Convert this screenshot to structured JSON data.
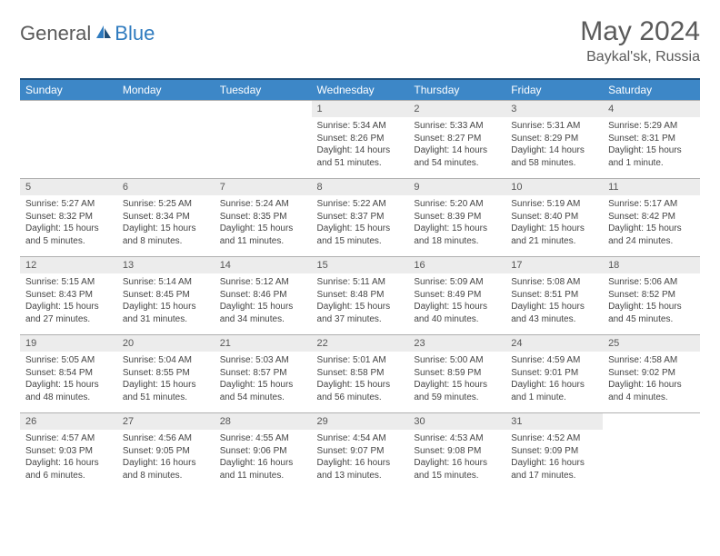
{
  "logo": {
    "part1": "General",
    "part2": "Blue"
  },
  "title": "May 2024",
  "location": "Baykal'sk, Russia",
  "colors": {
    "header_bg": "#3d87c7",
    "header_border_top": "#1f4e79",
    "daynum_bg": "#ececec",
    "text": "#444444",
    "title_color": "#5a5a5a",
    "logo_blue": "#2f7bbf"
  },
  "weekdays": [
    "Sunday",
    "Monday",
    "Tuesday",
    "Wednesday",
    "Thursday",
    "Friday",
    "Saturday"
  ],
  "weeks": [
    [
      null,
      null,
      null,
      {
        "n": "1",
        "sr": "5:34 AM",
        "ss": "8:26 PM",
        "dl": "14 hours and 51 minutes."
      },
      {
        "n": "2",
        "sr": "5:33 AM",
        "ss": "8:27 PM",
        "dl": "14 hours and 54 minutes."
      },
      {
        "n": "3",
        "sr": "5:31 AM",
        "ss": "8:29 PM",
        "dl": "14 hours and 58 minutes."
      },
      {
        "n": "4",
        "sr": "5:29 AM",
        "ss": "8:31 PM",
        "dl": "15 hours and 1 minute."
      }
    ],
    [
      {
        "n": "5",
        "sr": "5:27 AM",
        "ss": "8:32 PM",
        "dl": "15 hours and 5 minutes."
      },
      {
        "n": "6",
        "sr": "5:25 AM",
        "ss": "8:34 PM",
        "dl": "15 hours and 8 minutes."
      },
      {
        "n": "7",
        "sr": "5:24 AM",
        "ss": "8:35 PM",
        "dl": "15 hours and 11 minutes."
      },
      {
        "n": "8",
        "sr": "5:22 AM",
        "ss": "8:37 PM",
        "dl": "15 hours and 15 minutes."
      },
      {
        "n": "9",
        "sr": "5:20 AM",
        "ss": "8:39 PM",
        "dl": "15 hours and 18 minutes."
      },
      {
        "n": "10",
        "sr": "5:19 AM",
        "ss": "8:40 PM",
        "dl": "15 hours and 21 minutes."
      },
      {
        "n": "11",
        "sr": "5:17 AM",
        "ss": "8:42 PM",
        "dl": "15 hours and 24 minutes."
      }
    ],
    [
      {
        "n": "12",
        "sr": "5:15 AM",
        "ss": "8:43 PM",
        "dl": "15 hours and 27 minutes."
      },
      {
        "n": "13",
        "sr": "5:14 AM",
        "ss": "8:45 PM",
        "dl": "15 hours and 31 minutes."
      },
      {
        "n": "14",
        "sr": "5:12 AM",
        "ss": "8:46 PM",
        "dl": "15 hours and 34 minutes."
      },
      {
        "n": "15",
        "sr": "5:11 AM",
        "ss": "8:48 PM",
        "dl": "15 hours and 37 minutes."
      },
      {
        "n": "16",
        "sr": "5:09 AM",
        "ss": "8:49 PM",
        "dl": "15 hours and 40 minutes."
      },
      {
        "n": "17",
        "sr": "5:08 AM",
        "ss": "8:51 PM",
        "dl": "15 hours and 43 minutes."
      },
      {
        "n": "18",
        "sr": "5:06 AM",
        "ss": "8:52 PM",
        "dl": "15 hours and 45 minutes."
      }
    ],
    [
      {
        "n": "19",
        "sr": "5:05 AM",
        "ss": "8:54 PM",
        "dl": "15 hours and 48 minutes."
      },
      {
        "n": "20",
        "sr": "5:04 AM",
        "ss": "8:55 PM",
        "dl": "15 hours and 51 minutes."
      },
      {
        "n": "21",
        "sr": "5:03 AM",
        "ss": "8:57 PM",
        "dl": "15 hours and 54 minutes."
      },
      {
        "n": "22",
        "sr": "5:01 AM",
        "ss": "8:58 PM",
        "dl": "15 hours and 56 minutes."
      },
      {
        "n": "23",
        "sr": "5:00 AM",
        "ss": "8:59 PM",
        "dl": "15 hours and 59 minutes."
      },
      {
        "n": "24",
        "sr": "4:59 AM",
        "ss": "9:01 PM",
        "dl": "16 hours and 1 minute."
      },
      {
        "n": "25",
        "sr": "4:58 AM",
        "ss": "9:02 PM",
        "dl": "16 hours and 4 minutes."
      }
    ],
    [
      {
        "n": "26",
        "sr": "4:57 AM",
        "ss": "9:03 PM",
        "dl": "16 hours and 6 minutes."
      },
      {
        "n": "27",
        "sr": "4:56 AM",
        "ss": "9:05 PM",
        "dl": "16 hours and 8 minutes."
      },
      {
        "n": "28",
        "sr": "4:55 AM",
        "ss": "9:06 PM",
        "dl": "16 hours and 11 minutes."
      },
      {
        "n": "29",
        "sr": "4:54 AM",
        "ss": "9:07 PM",
        "dl": "16 hours and 13 minutes."
      },
      {
        "n": "30",
        "sr": "4:53 AM",
        "ss": "9:08 PM",
        "dl": "16 hours and 15 minutes."
      },
      {
        "n": "31",
        "sr": "4:52 AM",
        "ss": "9:09 PM",
        "dl": "16 hours and 17 minutes."
      },
      null
    ]
  ],
  "labels": {
    "sunrise": "Sunrise:",
    "sunset": "Sunset:",
    "daylight": "Daylight:"
  }
}
